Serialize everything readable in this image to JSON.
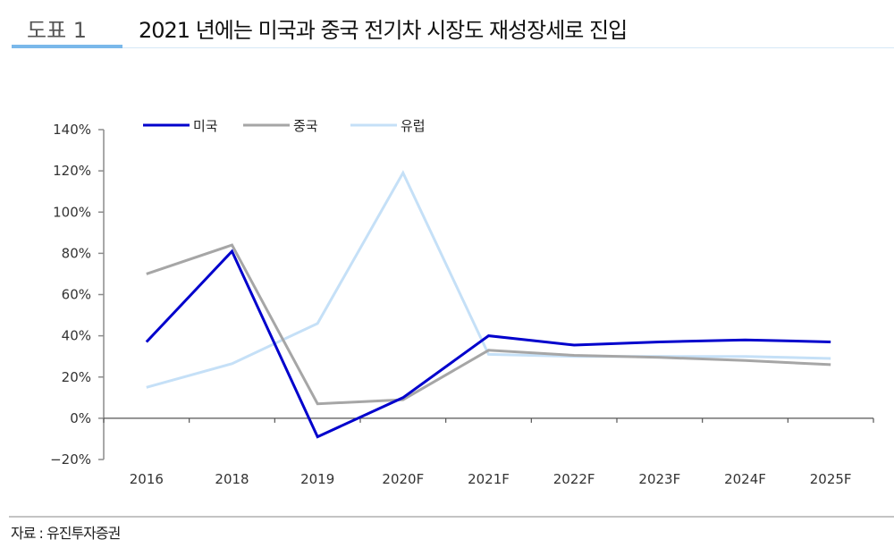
{
  "header": {
    "figure_label": "도표 1",
    "title": "2021 년에는 미국과 중국 전기차 시장도 재성장세로 진입",
    "accent_color": "#7ab8ea"
  },
  "footer": {
    "source": "자료 : 유진투자증권"
  },
  "legend": [
    {
      "label": "미국",
      "color": "#0000cc"
    },
    {
      "label": "중국",
      "color": "#a6a6a6"
    },
    {
      "label": "유럽",
      "color": "#c5e0f7"
    }
  ],
  "axis": {
    "y_ticks": [
      "140%",
      "120%",
      "100%",
      "80%",
      "60%",
      "40%",
      "20%",
      "0%",
      "−20%"
    ],
    "x_ticks": [
      "2016",
      "2018",
      "2019",
      "2020F",
      "2021F",
      "2022F",
      "2023F",
      "2024F",
      "2025F"
    ]
  },
  "chart_data": {
    "type": "line",
    "title": "2021 년에는 미국과 중국 전기차 시장도 재성장세로 진입",
    "xlabel": "",
    "ylabel": "",
    "categories": [
      "2016",
      "2018",
      "2019",
      "2020F",
      "2021F",
      "2022F",
      "2023F",
      "2024F",
      "2025F"
    ],
    "series": [
      {
        "name": "미국",
        "color": "#0000cc",
        "values": [
          37,
          81,
          -9,
          10,
          40,
          35.5,
          37,
          38,
          37
        ]
      },
      {
        "name": "중국",
        "color": "#a6a6a6",
        "values": [
          70,
          84,
          7,
          9,
          33,
          30.5,
          29.5,
          28,
          26
        ]
      },
      {
        "name": "유럽",
        "color": "#c5e0f7",
        "values": [
          15,
          26.5,
          46,
          119,
          31,
          30,
          30,
          30,
          29
        ]
      }
    ],
    "ylim": [
      -20,
      140
    ],
    "y_ticks": [
      -20,
      0,
      20,
      40,
      60,
      80,
      100,
      120,
      140
    ],
    "y_format": "percent",
    "grid": false,
    "legend_position": "top-left"
  }
}
